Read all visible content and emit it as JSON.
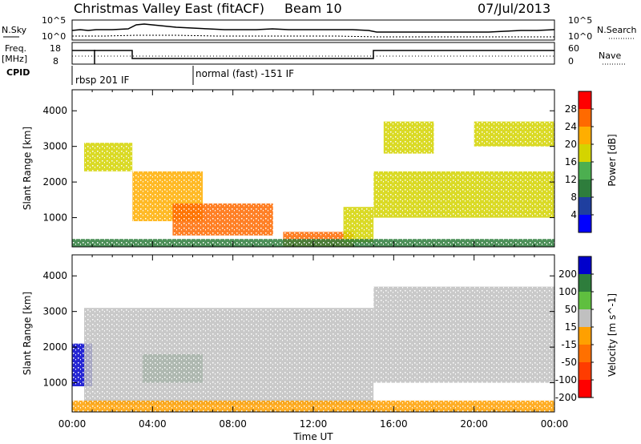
{
  "header": {
    "station": "Christmas Valley East (fitACF)",
    "beam": "Beam 10",
    "date": "07/Jul/2013"
  },
  "nsky_panel": {
    "left_label": "N.Sky",
    "left_ticks": [
      "10^5",
      "10^0"
    ],
    "right_label": "N.Search",
    "right_ticks": [
      "10^5",
      "10^0"
    ]
  },
  "freq_panel": {
    "left_label_1": "Freq.",
    "left_label_2": "[MHz]",
    "left_ticks": [
      "18",
      "8"
    ],
    "right_label": "Nave",
    "right_ticks": [
      "60",
      "0"
    ]
  },
  "cpid": {
    "label": "CPID",
    "mode_1": "rbsp 201 IF",
    "mode_2": "normal (fast) -151 IF"
  },
  "chart_data": [
    {
      "type": "heatmap",
      "name": "power",
      "ylabel": "Slant Range [km]",
      "xlabel": "",
      "ylim": [
        180,
        4590
      ],
      "yticks": [
        1000,
        2000,
        3000,
        4000
      ],
      "colorbar_label": "Power [dB]",
      "colorbar_ticks": [
        "28",
        "24",
        "20",
        "16",
        "12",
        "8",
        "4"
      ],
      "colorbar_colors": [
        "#ff0000",
        "#ff6a00",
        "#ffae00",
        "#d4d400",
        "#4caf50",
        "#2e7d3c",
        "#1f3f9f",
        "#0000ff"
      ],
      "regions": [
        {
          "t": [
            0.6,
            3.0
          ],
          "r": [
            2300,
            3100
          ],
          "c": 3
        },
        {
          "t": [
            3.0,
            6.5
          ],
          "r": [
            900,
            2300
          ],
          "c": 2
        },
        {
          "t": [
            5.0,
            10.0
          ],
          "r": [
            500,
            1400
          ],
          "c": 1
        },
        {
          "t": [
            10.5,
            14.0
          ],
          "r": [
            180,
            600
          ],
          "c": 1
        },
        {
          "t": [
            13.5,
            15.0
          ],
          "r": [
            300,
            1300
          ],
          "c": 3
        },
        {
          "t": [
            15.0,
            24.0
          ],
          "r": [
            1000,
            2300
          ],
          "c": 3
        },
        {
          "t": [
            15.5,
            18.0
          ],
          "r": [
            2800,
            3700
          ],
          "c": 3
        },
        {
          "t": [
            20.0,
            24.0
          ],
          "r": [
            3000,
            3700
          ],
          "c": 3
        },
        {
          "t": [
            0.0,
            24.0
          ],
          "r": [
            180,
            400
          ],
          "c": 5
        }
      ]
    },
    {
      "type": "heatmap",
      "name": "velocity",
      "xlabel": "Time UT",
      "ylabel": "Slant Range [km]",
      "ylim": [
        180,
        4590
      ],
      "yticks": [
        1000,
        2000,
        3000,
        4000
      ],
      "x_ticks": [
        "00:00",
        "04:00",
        "08:00",
        "12:00",
        "16:00",
        "20:00",
        "00:00"
      ],
      "colorbar_label": "Velocity [m s^-1]",
      "colorbar_ticks": [
        "200",
        "100",
        "50",
        "15",
        "-15",
        "-50",
        "-100",
        "-200"
      ],
      "colorbar_colors": [
        "#0000cc",
        "#2e7d3c",
        "#5fbf3f",
        "#c0c0c0",
        "#ffa000",
        "#ff7000",
        "#ff3c00",
        "#ff0000"
      ],
      "regions": [
        {
          "t": [
            0.0,
            1.0
          ],
          "r": [
            900,
            2100
          ],
          "c": 0
        },
        {
          "t": [
            3.5,
            6.5
          ],
          "r": [
            1000,
            1800
          ],
          "c": 1
        },
        {
          "t": [
            0.6,
            15.0
          ],
          "r": [
            400,
            3100
          ],
          "c": 3
        },
        {
          "t": [
            15.0,
            24.0
          ],
          "r": [
            1000,
            3700
          ],
          "c": 3
        },
        {
          "t": [
            0.0,
            24.0
          ],
          "r": [
            180,
            500
          ],
          "c": 4
        }
      ]
    }
  ]
}
